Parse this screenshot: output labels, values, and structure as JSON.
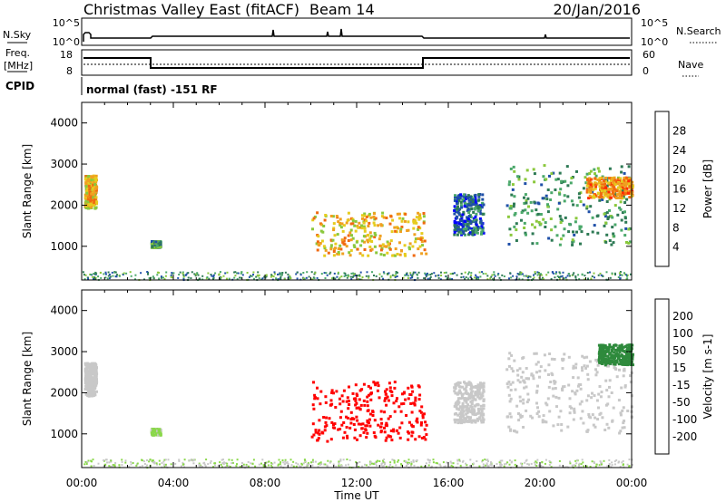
{
  "header": {
    "title": "Christmas Valley East (fitACF)",
    "beam": "Beam 14",
    "date": "20/Jan/2016"
  },
  "top_panels": {
    "nsky_label": "N.Sky",
    "nsearch_label": "N.Search",
    "noise_ticks": [
      "10^5",
      "10^0"
    ],
    "freq_label": "Freq.",
    "freq_unit": "[MHz]",
    "freq_ticks": [
      "18",
      "8"
    ],
    "nave_label": "Nave",
    "nave_ticks": [
      "60",
      "0"
    ],
    "cpid_label": "CPID",
    "cpid_text": "normal (fast) -151 RF"
  },
  "colors": {
    "power_scale": [
      "#0000ff",
      "#1f4fa8",
      "#2e7a55",
      "#4aa86a",
      "#8ac83c",
      "#e6cc1f",
      "#f0a020",
      "#f06a10",
      "#ff2a00",
      "#ff0000"
    ],
    "velocity_scale": [
      "#ff0000",
      "#ff5a00",
      "#ffa000",
      "#c8c8c8",
      "#8ad84a",
      "#2e8a3c",
      "#1e40c8"
    ]
  },
  "chart_data": [
    {
      "type": "heatmap",
      "panel": "power",
      "ylabel": "Slant Range [km]",
      "xlim": [
        "00:00",
        "24:00"
      ],
      "ylim": [
        180,
        4500
      ],
      "yticks": [
        1000,
        2000,
        3000,
        4000
      ],
      "colorbar_label": "Power [dB]",
      "colorbar_ticks": [
        "28",
        "24",
        "20",
        "16",
        "12",
        "8",
        "4"
      ],
      "colorbar_range": [
        0,
        30
      ],
      "echo_regions": [
        {
          "t_start": 0.1,
          "t_end": 0.6,
          "r_min": 1950,
          "r_max": 2750,
          "power": 18
        },
        {
          "t_start": 3.0,
          "t_end": 3.4,
          "r_min": 1000,
          "r_max": 1150,
          "power": 10
        },
        {
          "t_start": 10.0,
          "t_end": 15.0,
          "r_min": 800,
          "r_max": 1850,
          "power": 18
        },
        {
          "t_start": 16.2,
          "t_end": 17.5,
          "r_min": 1300,
          "r_max": 2300,
          "power": 6
        },
        {
          "t_start": 18.5,
          "t_end": 24.0,
          "r_min": 1050,
          "r_max": 3000,
          "power": 10
        },
        {
          "t_start": 22.0,
          "t_end": 24.0,
          "r_min": 2200,
          "r_max": 2700,
          "power": 20
        }
      ]
    },
    {
      "type": "heatmap",
      "panel": "velocity",
      "ylabel": "Slant Range [km]",
      "xlabel": "Time UT",
      "xticks": [
        "00:00",
        "04:00",
        "08:00",
        "12:00",
        "16:00",
        "20:00",
        "00:00"
      ],
      "ylim": [
        180,
        4500
      ],
      "yticks": [
        1000,
        2000,
        3000,
        4000
      ],
      "colorbar_label": "Velocity [m s-1]",
      "colorbar_ticks": [
        "200",
        "100",
        "50",
        "15",
        "-15",
        "-50",
        "-100",
        "-200"
      ],
      "colorbar_range": [
        -250,
        250
      ],
      "echo_regions": [
        {
          "t_start": 0.1,
          "t_end": 0.6,
          "r_min": 1950,
          "r_max": 2750,
          "velocity": 0
        },
        {
          "t_start": 3.0,
          "t_end": 3.4,
          "r_min": 1000,
          "r_max": 1150,
          "velocity": 40
        },
        {
          "t_start": 10.0,
          "t_end": 15.0,
          "r_min": 850,
          "r_max": 2300,
          "velocity": -200
        },
        {
          "t_start": 16.2,
          "t_end": 17.5,
          "r_min": 1300,
          "r_max": 2300,
          "velocity": 0
        },
        {
          "t_start": 18.5,
          "t_end": 24.0,
          "r_min": 1050,
          "r_max": 3000,
          "velocity": 0
        },
        {
          "t_start": 22.5,
          "t_end": 24.0,
          "r_min": 2700,
          "r_max": 3200,
          "velocity": 120
        }
      ]
    }
  ]
}
